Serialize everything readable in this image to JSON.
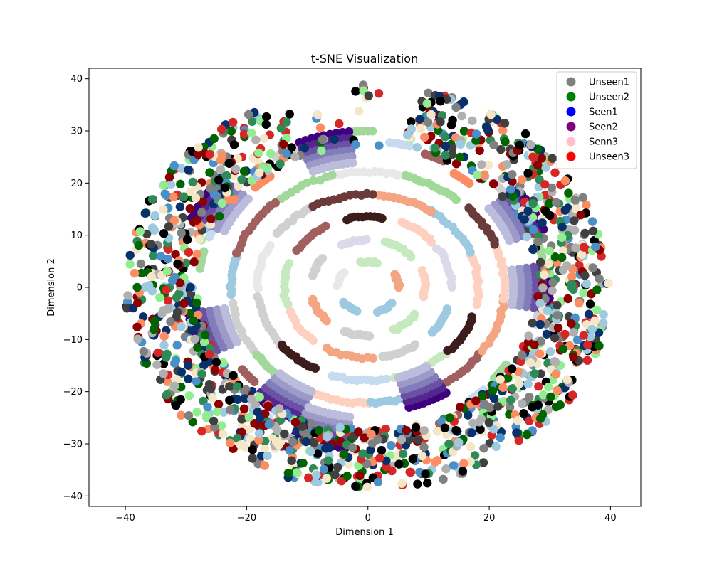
{
  "chart_data": {
    "type": "scatter",
    "title": "t-SNE Visualization",
    "xlabel": "Dimension 1",
    "ylabel": "Dimension 2",
    "xlim": [
      -46,
      45
    ],
    "ylim": [
      -42,
      42
    ],
    "xticks": [
      -40,
      -20,
      0,
      20,
      40
    ],
    "yticks": [
      -40,
      -30,
      -20,
      -10,
      0,
      10,
      20,
      30,
      40
    ],
    "xtick_labels": [
      "−40",
      "−20",
      "0",
      "20",
      "40"
    ],
    "ytick_labels": [
      "−40",
      "−30",
      "−20",
      "−10",
      "0",
      "10",
      "20",
      "30",
      "40"
    ],
    "grid": false,
    "legend_position": "top-right",
    "legend": [
      {
        "name": "Unseen1",
        "color": "#808080"
      },
      {
        "name": "Unseen2",
        "color": "#008000"
      },
      {
        "name": "Seen1",
        "color": "#0000ff"
      },
      {
        "name": "Seen2",
        "color": "#800080"
      },
      {
        "name": "Senn3",
        "color": "#ffc0cb"
      },
      {
        "name": "Unseen3",
        "color": "#ff0000"
      }
    ],
    "structure": {
      "description": "concentric rings of arc-shaped clusters",
      "outer_ring_radius_range": [
        28,
        40
      ],
      "outer_ring_colors": [
        "#000000",
        "#404040",
        "#808080",
        "#b0b0b0",
        "#006400",
        "#2e8b57",
        "#90ee90",
        "#08306b",
        "#4a90c8",
        "#9ecae1",
        "#8b0000",
        "#d62728",
        "#fc8d62",
        "#f5e6c8"
      ],
      "purple_arc_clusters": [
        {
          "center": [
            -25,
            16
          ],
          "radius": 32
        },
        {
          "center": [
            -7,
            28
          ],
          "radius": 30
        },
        {
          "center": [
            27,
            15
          ],
          "radius": 31
        },
        {
          "center": [
            30,
            0
          ],
          "radius": 30
        },
        {
          "center": [
            -28,
            -9
          ],
          "radius": 30
        },
        {
          "center": [
            -15,
            -23
          ],
          "radius": 28
        },
        {
          "center": [
            -8,
            -30
          ],
          "radius": 31
        },
        {
          "center": [
            10,
            -22
          ],
          "radius": 24
        }
      ],
      "inner_arc_colors": [
        "#3d1c1c",
        "#6b3a3a",
        "#a06060",
        "#f4a582",
        "#fdd0bf",
        "#9ecae1",
        "#c6dbef",
        "#a1d99b",
        "#c7e9c0",
        "#d0d0d0",
        "#e8e8e8",
        "#dadaeb"
      ]
    }
  }
}
